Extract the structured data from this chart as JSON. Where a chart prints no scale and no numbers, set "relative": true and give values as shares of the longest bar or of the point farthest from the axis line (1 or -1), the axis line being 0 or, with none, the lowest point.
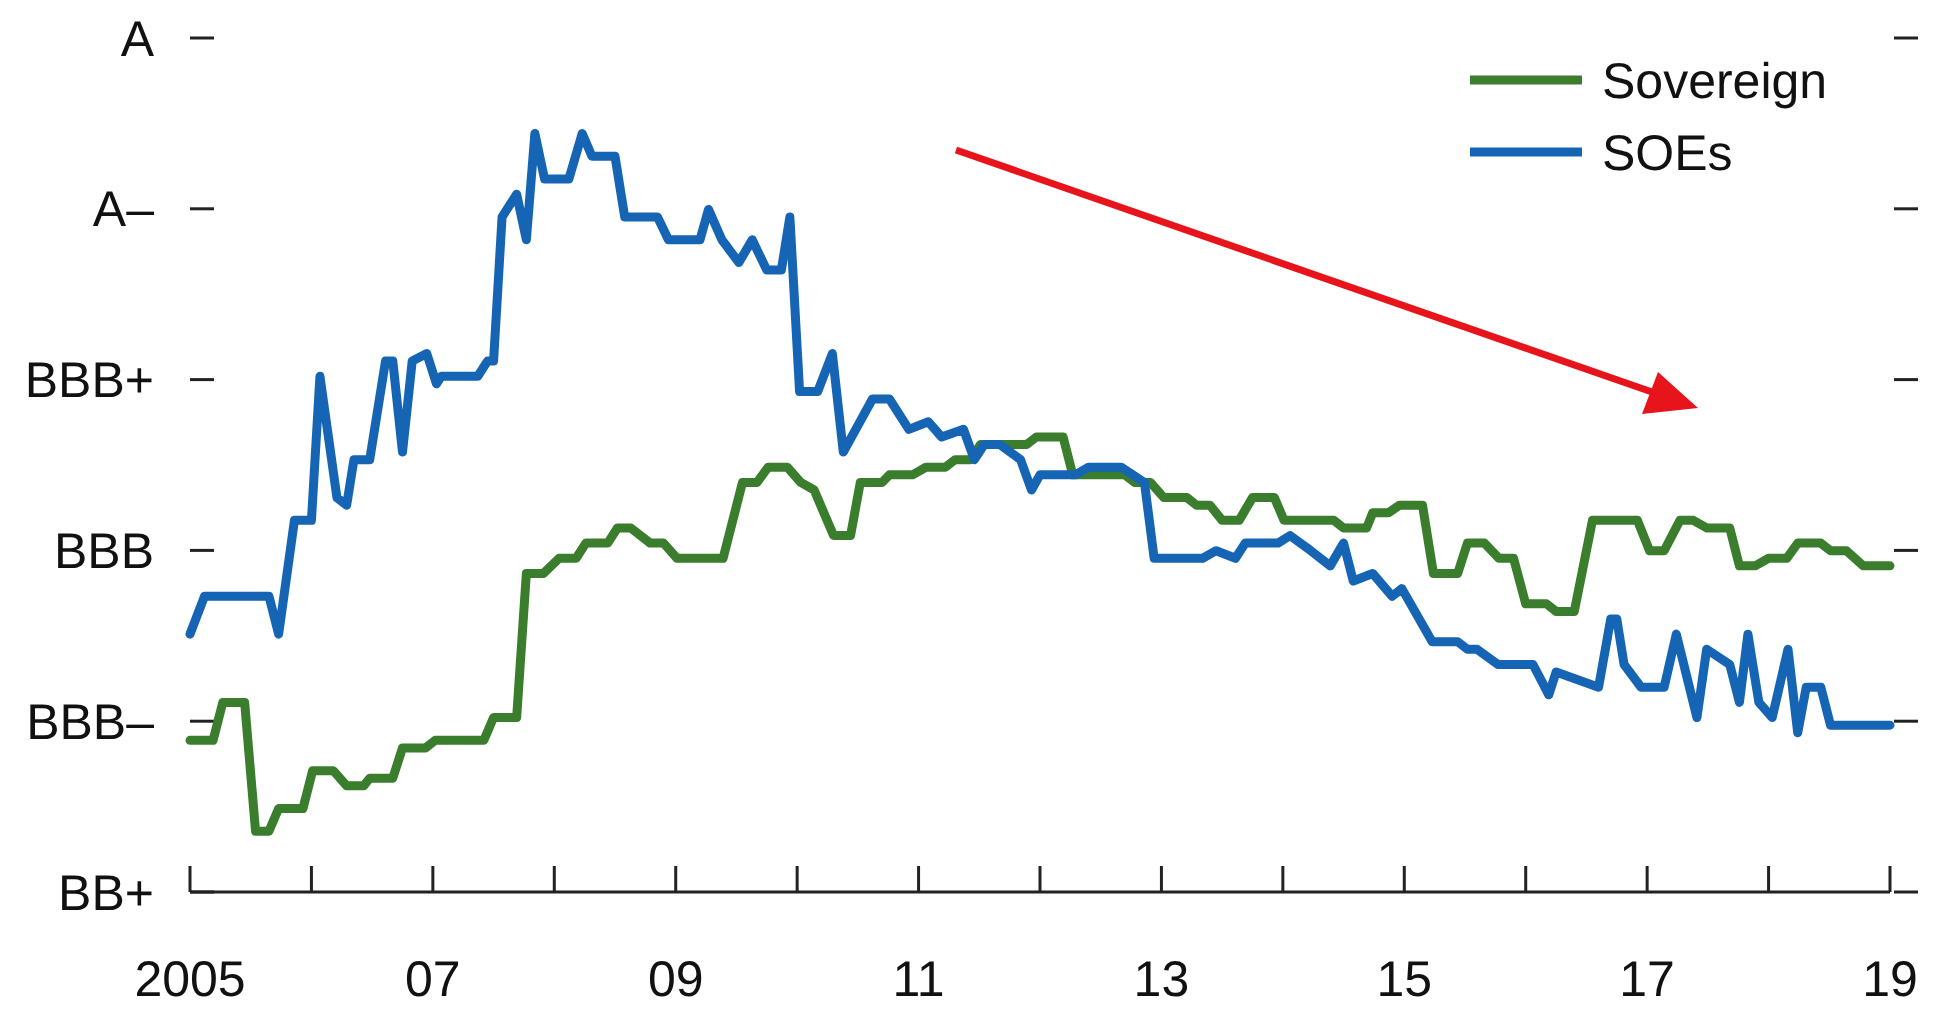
{
  "chart_data": {
    "type": "line",
    "relative": true,
    "xlim": [
      2005,
      2019
    ],
    "xticks": [
      {
        "value": 2005,
        "label": "2005"
      },
      {
        "value": 2006,
        "label": null
      },
      {
        "value": 2007,
        "label": "07"
      },
      {
        "value": 2008,
        "label": null
      },
      {
        "value": 2009,
        "label": "09"
      },
      {
        "value": 2010,
        "label": null
      },
      {
        "value": 2011,
        "label": "11"
      },
      {
        "value": 2012,
        "label": null
      },
      {
        "value": 2013,
        "label": "13"
      },
      {
        "value": 2014,
        "label": null
      },
      {
        "value": 2015,
        "label": "15"
      },
      {
        "value": 2016,
        "label": null
      },
      {
        "value": 2017,
        "label": "17"
      },
      {
        "value": 2018,
        "label": null
      },
      {
        "value": 2019,
        "label": "19"
      }
    ],
    "annotations": [
      "BB+",
      "BBB–",
      "BBB",
      "BBB+",
      "A–",
      "A"
    ],
    "grid": false,
    "legend": "top right",
    "marker": "none",
    "line_style": "solid",
    "series": [
      {
        "name": "Sovereign",
        "color": "#3a7d2c",
        "x": [
          2005.0,
          2005.19,
          2005.27,
          2005.45,
          2005.54,
          2005.65,
          2005.73,
          2005.93,
          2006.01,
          2006.18,
          2006.29,
          2006.43,
          2006.48,
          2006.67,
          2006.75,
          2006.94,
          2007.02,
          2007.42,
          2007.5,
          2007.69,
          2007.77,
          2007.91,
          2008.04,
          2008.18,
          2008.26,
          2008.44,
          2008.52,
          2008.63,
          2008.79,
          2008.9,
          2009.01,
          2009.39,
          2009.55,
          2009.67,
          2009.76,
          2009.92,
          2010.03,
          2010.14,
          2010.3,
          2010.44,
          2010.52,
          2010.7,
          2010.76,
          2010.95,
          2011.06,
          2011.22,
          2011.3,
          2011.43,
          2011.51,
          2011.89,
          2011.97,
          2012.19,
          2012.27,
          2012.7,
          2012.78,
          2012.91,
          2013.02,
          2013.21,
          2013.29,
          2013.4,
          2013.5,
          2013.64,
          2013.75,
          2013.93,
          2014.01,
          2014.42,
          2014.5,
          2014.69,
          2014.74,
          2014.87,
          2014.96,
          2015.15,
          2015.24,
          2015.44,
          2015.52,
          2015.66,
          2015.78,
          2015.9,
          2016.0,
          2016.17,
          2016.25,
          2016.4,
          2016.55,
          2016.92,
          2017.02,
          2017.14,
          2017.27,
          2017.38,
          2017.49,
          2017.68,
          2017.76,
          2017.89,
          2018.0,
          2018.15,
          2018.24,
          2018.43,
          2018.51,
          2018.64,
          2018.78,
          2019.0
        ],
        "values": [
          0.2,
          0.2,
          0.25,
          0.25,
          0.08,
          0.08,
          0.11,
          0.11,
          0.16,
          0.16,
          0.14,
          0.14,
          0.15,
          0.15,
          0.19,
          0.19,
          0.2,
          0.2,
          0.23,
          0.23,
          0.42,
          0.42,
          0.44,
          0.44,
          0.46,
          0.46,
          0.48,
          0.48,
          0.46,
          0.46,
          0.44,
          0.44,
          0.54,
          0.54,
          0.56,
          0.56,
          0.54,
          0.53,
          0.47,
          0.47,
          0.54,
          0.54,
          0.55,
          0.55,
          0.56,
          0.56,
          0.57,
          0.57,
          0.59,
          0.59,
          0.6,
          0.6,
          0.55,
          0.55,
          0.54,
          0.54,
          0.52,
          0.52,
          0.51,
          0.51,
          0.49,
          0.49,
          0.52,
          0.52,
          0.49,
          0.49,
          0.48,
          0.48,
          0.5,
          0.5,
          0.51,
          0.51,
          0.42,
          0.42,
          0.46,
          0.46,
          0.44,
          0.44,
          0.38,
          0.38,
          0.37,
          0.37,
          0.49,
          0.49,
          0.45,
          0.45,
          0.49,
          0.49,
          0.48,
          0.48,
          0.43,
          0.43,
          0.44,
          0.44,
          0.46,
          0.46,
          0.45,
          0.45,
          0.43,
          0.43
        ]
      },
      {
        "name": "SOEs",
        "color": "#1565b4",
        "x": [
          2005.0,
          2005.12,
          2005.65,
          2005.73,
          2005.86,
          2006.0,
          2006.07,
          2006.21,
          2006.29,
          2006.35,
          2006.48,
          2006.61,
          2006.67,
          2006.75,
          2006.83,
          2006.95,
          2007.03,
          2007.07,
          2007.37,
          2007.45,
          2007.5,
          2007.57,
          2007.69,
          2007.77,
          2007.84,
          2007.92,
          2008.12,
          2008.23,
          2008.31,
          2008.5,
          2008.58,
          2008.85,
          2008.94,
          2009.2,
          2009.27,
          2009.38,
          2009.52,
          2009.63,
          2009.75,
          2009.87,
          2009.94,
          2010.02,
          2010.17,
          2010.29,
          2010.38,
          2010.62,
          2010.76,
          2010.92,
          2011.08,
          2011.19,
          2011.37,
          2011.46,
          2011.54,
          2011.67,
          2011.84,
          2011.93,
          2012.0,
          2012.29,
          2012.4,
          2012.67,
          2012.86,
          2012.94,
          2013.34,
          2013.45,
          2013.61,
          2013.69,
          2013.96,
          2014.06,
          2014.23,
          2014.39,
          2014.5,
          2014.58,
          2014.74,
          2014.9,
          2014.98,
          2015.23,
          2015.44,
          2015.52,
          2015.6,
          2015.77,
          2016.06,
          2016.19,
          2016.25,
          2016.6,
          2016.7,
          2016.75,
          2016.81,
          2016.95,
          2017.14,
          2017.24,
          2017.41,
          2017.49,
          2017.68,
          2017.76,
          2017.83,
          2017.92,
          2018.03,
          2018.16,
          2018.24,
          2018.31,
          2018.43,
          2018.51,
          2019.0
        ],
        "values": [
          0.34,
          0.39,
          0.39,
          0.34,
          0.49,
          0.49,
          0.68,
          0.52,
          0.51,
          0.57,
          0.57,
          0.7,
          0.7,
          0.58,
          0.7,
          0.71,
          0.67,
          0.68,
          0.68,
          0.7,
          0.7,
          0.89,
          0.92,
          0.86,
          1,
          0.94,
          0.94,
          1,
          0.97,
          0.97,
          0.89,
          0.89,
          0.86,
          0.86,
          0.9,
          0.86,
          0.83,
          0.86,
          0.82,
          0.82,
          0.89,
          0.66,
          0.66,
          0.71,
          0.58,
          0.65,
          0.65,
          0.61,
          0.62,
          0.6,
          0.61,
          0.57,
          0.59,
          0.59,
          0.57,
          0.53,
          0.55,
          0.55,
          0.56,
          0.56,
          0.54,
          0.44,
          0.44,
          0.45,
          0.44,
          0.46,
          0.46,
          0.47,
          0.45,
          0.43,
          0.46,
          0.41,
          0.42,
          0.39,
          0.4,
          0.33,
          0.33,
          0.32,
          0.32,
          0.3,
          0.3,
          0.26,
          0.29,
          0.27,
          0.36,
          0.36,
          0.3,
          0.27,
          0.27,
          0.34,
          0.23,
          0.32,
          0.3,
          0.25,
          0.34,
          0.25,
          0.23,
          0.32,
          0.21,
          0.27,
          0.27,
          0.22,
          0.22
        ]
      }
    ]
  }
}
